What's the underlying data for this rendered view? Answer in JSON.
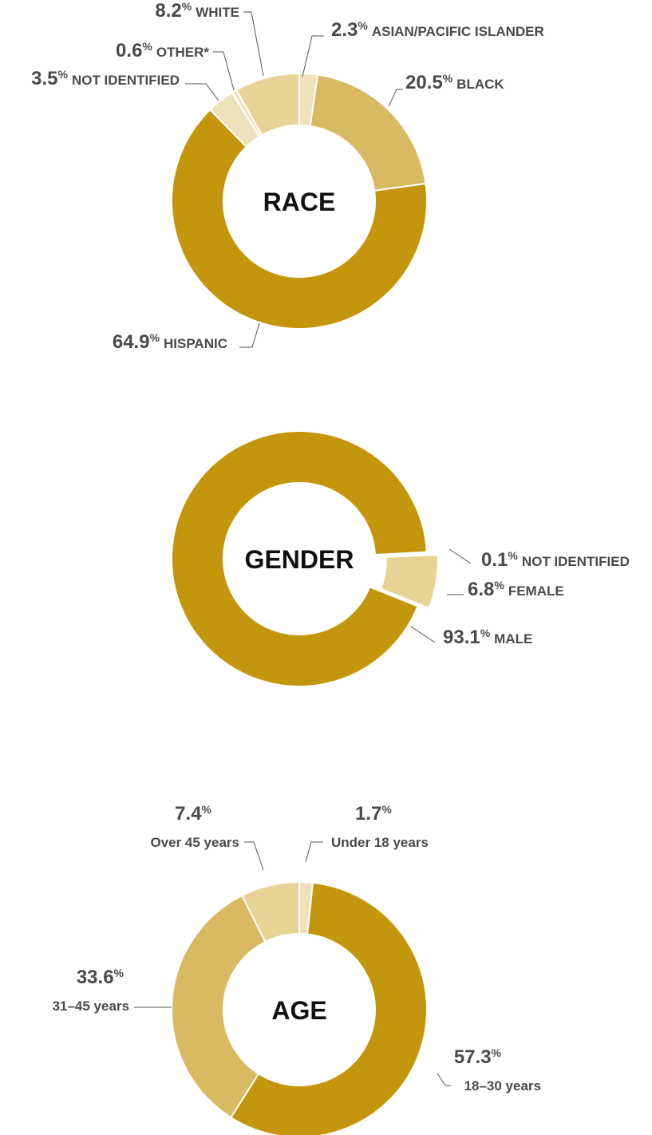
{
  "chart_data": [
    {
      "type": "pie",
      "title": "RACE",
      "unit": "%",
      "categories": [
        "ASIAN/PACIFIC ISLANDER",
        "BLACK",
        "HISPANIC",
        "NOT IDENTIFIED",
        "OTHER*",
        "WHITE"
      ],
      "values": [
        2.3,
        20.5,
        64.9,
        3.5,
        0.6,
        8.2
      ],
      "colors": [
        "#eee2bd",
        "#d9ba62",
        "#c4960c",
        "#eee2bd",
        "#eee2bd",
        "#e8d396"
      ]
    },
    {
      "type": "pie",
      "title": "GENDER",
      "unit": "%",
      "categories": [
        "NOT IDENTIFIED",
        "FEMALE",
        "MALE"
      ],
      "values": [
        0.1,
        6.8,
        93.1
      ],
      "colors": [
        "#e8d396",
        "#e8d396",
        "#c4960c"
      ]
    },
    {
      "type": "pie",
      "title": "AGE",
      "unit": "%",
      "categories": [
        "Under 18 years",
        "18–30 years",
        "31–45 years",
        "Over 45 years"
      ],
      "values": [
        1.7,
        57.3,
        33.6,
        7.4
      ],
      "colors": [
        "#eee2bd",
        "#c4960c",
        "#d9ba62",
        "#e8d396"
      ]
    }
  ]
}
